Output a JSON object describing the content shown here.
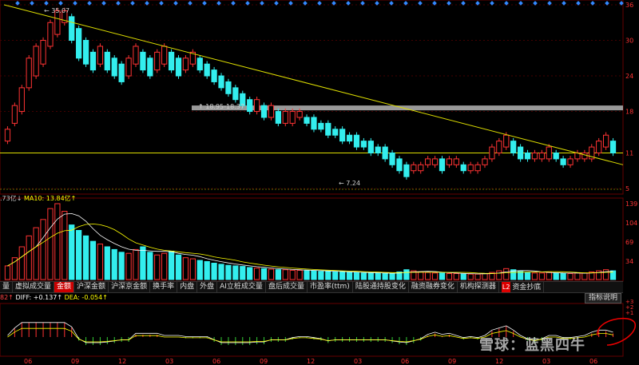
{
  "price_axis": [
    "36",
    "30",
    "24",
    "18",
    "11",
    "5"
  ],
  "volume_axis": [
    "139",
    "104",
    "69",
    "34"
  ],
  "macd_axis": [
    "+3",
    "+2",
    "+1"
  ],
  "x_axis": [
    "06",
    "09",
    "12",
    "03",
    "06",
    "09",
    "12",
    "03",
    "06",
    "09",
    "12",
    "03",
    "06"
  ],
  "annotations": {
    "high": "35.07",
    "low": "7.24",
    "band": "18.95-18.37"
  },
  "volume_info": {
    "prefix": ".73亿↓",
    "ma10": "MA10: 13.84亿↑"
  },
  "macd_info": {
    "prefix": "82↑",
    "diff": "DIFF: +0.137↑",
    "dea": "DEA: -0.054↑"
  },
  "tabs": [
    {
      "label": "量",
      "active": false
    },
    {
      "label": "虚拟成交量",
      "active": false
    },
    {
      "label": "金额",
      "active": true
    },
    {
      "label": "沪深金额",
      "active": false
    },
    {
      "label": "沪深京金额",
      "active": false
    },
    {
      "label": "换手率",
      "active": false
    },
    {
      "label": "内盘",
      "active": false
    },
    {
      "label": "外盘",
      "active": false
    },
    {
      "label": "AI立桩成交量",
      "active": false
    },
    {
      "label": "盘后成交量",
      "active": false
    },
    {
      "label": "市盈率(ttm)",
      "active": false
    },
    {
      "label": "陆股通持股变化",
      "active": false
    },
    {
      "label": "融资融券变化",
      "active": false
    },
    {
      "label": "机构探测器",
      "active": false
    },
    {
      "label": "资金抄底",
      "active": false,
      "badge": "L2"
    }
  ],
  "indicator_button": "指标说明",
  "watermark": "雪球：蓝黑四牛",
  "chart_data": {
    "type": "candlestick",
    "y_range": [
      5,
      36
    ],
    "candles": [
      [
        13,
        15
      ],
      [
        16,
        19
      ],
      [
        18,
        22
      ],
      [
        22,
        27
      ],
      [
        24,
        29
      ],
      [
        26,
        30
      ],
      [
        29,
        33
      ],
      [
        31,
        35
      ],
      [
        33,
        35
      ],
      [
        30,
        34
      ],
      [
        27,
        32
      ],
      [
        26,
        30
      ],
      [
        25,
        28
      ],
      [
        26,
        29
      ],
      [
        25,
        28
      ],
      [
        24,
        27
      ],
      [
        23,
        26
      ],
      [
        24,
        27
      ],
      [
        26,
        29
      ],
      [
        25,
        28
      ],
      [
        24,
        27
      ],
      [
        25,
        28
      ],
      [
        26,
        29
      ],
      [
        25,
        28
      ],
      [
        24,
        27
      ],
      [
        25,
        27
      ],
      [
        26,
        28
      ],
      [
        25,
        27
      ],
      [
        24,
        26
      ],
      [
        23,
        25
      ],
      [
        22,
        24
      ],
      [
        21,
        23
      ],
      [
        20,
        22
      ],
      [
        19,
        21
      ],
      [
        18,
        20
      ],
      [
        18,
        20
      ],
      [
        17,
        19
      ],
      [
        17,
        19
      ],
      [
        16,
        18
      ],
      [
        16,
        18
      ],
      [
        16,
        18
      ],
      [
        17,
        18
      ],
      [
        16,
        17
      ],
      [
        15,
        17
      ],
      [
        15,
        16
      ],
      [
        14,
        16
      ],
      [
        14,
        15
      ],
      [
        13,
        15
      ],
      [
        13,
        14
      ],
      [
        12,
        14
      ],
      [
        12,
        13
      ],
      [
        11,
        13
      ],
      [
        11,
        12
      ],
      [
        10,
        12
      ],
      [
        9,
        11
      ],
      [
        8,
        10
      ],
      [
        7,
        9
      ],
      [
        8,
        9
      ],
      [
        8,
        9
      ],
      [
        9,
        10
      ],
      [
        9,
        10
      ],
      [
        8,
        10
      ],
      [
        9,
        10
      ],
      [
        9,
        10
      ],
      [
        8,
        9
      ],
      [
        8,
        9
      ],
      [
        8,
        9
      ],
      [
        9,
        10
      ],
      [
        10,
        12
      ],
      [
        11,
        13
      ],
      [
        12,
        14
      ],
      [
        11,
        13
      ],
      [
        10,
        12
      ],
      [
        10,
        11
      ],
      [
        10,
        11
      ],
      [
        10,
        11
      ],
      [
        10,
        12
      ],
      [
        10,
        11
      ],
      [
        9,
        10
      ],
      [
        9,
        10
      ],
      [
        10,
        11
      ],
      [
        10,
        11
      ],
      [
        10,
        12
      ],
      [
        11,
        13
      ],
      [
        12,
        14
      ],
      [
        11,
        13
      ]
    ],
    "volume": [
      25,
      40,
      60,
      80,
      95,
      110,
      130,
      139,
      125,
      100,
      90,
      80,
      70,
      65,
      60,
      55,
      50,
      48,
      55,
      60,
      50,
      45,
      48,
      52,
      45,
      40,
      38,
      35,
      33,
      30,
      28,
      26,
      25,
      24,
      22,
      21,
      20,
      19,
      18,
      18,
      17,
      17,
      16,
      16,
      15,
      15,
      14,
      14,
      13,
      13,
      12,
      12,
      12,
      11,
      11,
      14,
      18,
      16,
      14,
      13,
      12,
      12,
      11,
      11,
      10,
      10,
      10,
      11,
      13,
      16,
      20,
      18,
      15,
      13,
      12,
      12,
      13,
      12,
      11,
      11,
      12,
      12,
      14,
      16,
      18,
      16
    ],
    "trendline": [
      [
        5,
        36
      ],
      [
        780,
        9
      ]
    ],
    "horizontal_levels": [
      11,
      18.6
    ]
  }
}
